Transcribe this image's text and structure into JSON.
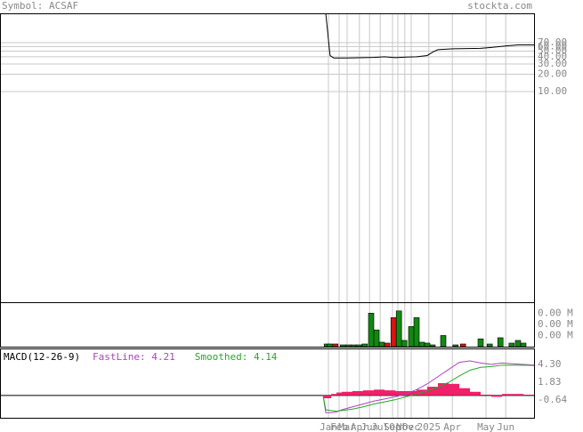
{
  "header": {
    "symbol": "Symbol: ACSAF",
    "site": "stockta.com"
  },
  "chart_data": [
    {
      "type": "line",
      "log_scale": true,
      "grid": true,
      "xlim": [
        0,
        100
      ],
      "ylim": [
        0.0023,
        225
      ],
      "yticks": [
        {
          "value": 70,
          "label": "70.00"
        },
        {
          "value": 60,
          "label": "60.00"
        },
        {
          "value": 50,
          "label": "50.00"
        },
        {
          "value": 40,
          "label": "40.00"
        },
        {
          "value": 30,
          "label": "30.00"
        },
        {
          "value": 20,
          "label": "20.00"
        },
        {
          "value": 10,
          "label": "10.00"
        }
      ],
      "x": [
        61,
        61.8,
        62.5,
        65,
        68,
        70,
        72,
        74,
        76,
        78,
        80,
        81,
        82,
        85,
        90,
        92,
        95,
        97,
        100
      ],
      "series": [
        {
          "color": "#000000",
          "values": [
            225,
            42,
            38,
            38,
            38.5,
            39,
            40,
            38.5,
            39.5,
            40,
            42,
            48,
            53,
            55,
            56,
            58,
            62,
            64,
            64
          ]
        }
      ]
    },
    {
      "type": "bar",
      "xlim": [
        0,
        100
      ],
      "ylim": [
        0,
        0.0039
      ],
      "yticks": [
        {
          "value": 0.003,
          "label": "0.00 M"
        },
        {
          "value": 0.002,
          "label": "0.00 M"
        },
        {
          "value": 0.001,
          "label": "0.00 M"
        }
      ],
      "x": [
        61.2,
        61.8,
        62.8,
        64.2,
        65.2,
        66.2,
        67.2,
        68.3,
        69.5,
        70.5,
        71.5,
        72.5,
        73.7,
        74.7,
        75.7,
        77,
        78,
        79,
        80,
        81,
        83,
        85.3,
        86.7,
        90,
        91.7,
        93.7,
        95.8,
        97,
        98
      ],
      "values": [
        0.00024,
        0.00024,
        0.00024,
        0.00016,
        0.00016,
        0.00016,
        0.00016,
        0.00024,
        0.003,
        0.0015,
        0.0004,
        0.00032,
        0.0026,
        0.0032,
        0.00056,
        0.0018,
        0.0026,
        0.0004,
        0.00032,
        0.00016,
        0.001,
        0.00016,
        0.00024,
        0.0007,
        0.00024,
        0.0008,
        0.00032,
        0.00056,
        0.00032
      ],
      "colors": [
        "#118811",
        "#118811",
        "#dd1111",
        "#118811",
        "#118811",
        "#118811",
        "#118811",
        "#118811",
        "#118811",
        "#118811",
        "#118811",
        "#dd1111",
        "#dd1111",
        "#118811",
        "#118811",
        "#118811",
        "#118811",
        "#118811",
        "#118811",
        "#118811",
        "#118811",
        "#118811",
        "#dd1111",
        "#118811",
        "#118811",
        "#118811",
        "#118811",
        "#118811",
        "#118811"
      ]
    },
    {
      "type": "macd",
      "title": "MACD(12-26-9)",
      "xlim": [
        0,
        100
      ],
      "ylim": [
        -3.11,
        6.4
      ],
      "yticks": [
        {
          "value": 4.3,
          "label": "4.30"
        },
        {
          "value": 1.83,
          "label": "1.83"
        },
        {
          "value": -0.64,
          "label": "-0.64"
        }
      ],
      "xticks": [
        {
          "value": 61.5,
          "label": "Jan"
        },
        {
          "value": 63.5,
          "label": "Feb"
        },
        {
          "value": 65,
          "label": "Mar"
        },
        {
          "value": 67.3,
          "label": "Apr"
        },
        {
          "value": 69.2,
          "label": "Jun"
        },
        {
          "value": 71.2,
          "label": "Jul"
        },
        {
          "value": 73.5,
          "label": "Sep"
        },
        {
          "value": 74.5,
          "label": "Oct"
        },
        {
          "value": 75.8,
          "label": "Nov"
        },
        {
          "value": 77,
          "label": "Dec"
        },
        {
          "value": 80.3,
          "label": "2025"
        },
        {
          "value": 84.7,
          "label": "Apr"
        },
        {
          "value": 91,
          "label": "May"
        },
        {
          "value": 94.7,
          "label": "Jun"
        }
      ],
      "x": [
        60.5,
        61,
        62,
        63,
        64,
        66,
        68,
        70,
        72,
        74,
        76,
        78,
        80,
        82,
        84,
        86,
        88,
        90,
        92,
        94,
        96,
        98,
        100
      ],
      "histogram": {
        "color": "#f0206a",
        "values": [
          -0.4,
          -0.4,
          0.2,
          0.4,
          0.5,
          0.6,
          0.7,
          0.8,
          0.7,
          0.6,
          0.6,
          0.8,
          1.2,
          1.7,
          1.6,
          1.0,
          0.5,
          0.1,
          -0.2,
          0.2,
          0.2,
          0.1,
          0.0
        ]
      },
      "series": [
        {
          "name": "FastLine: 4.21",
          "color": "#b040c0",
          "values": [
            0,
            -2.4,
            -2.4,
            -2.3,
            -2.0,
            -1.6,
            -1.2,
            -0.8,
            -0.5,
            -0.2,
            0.2,
            0.8,
            1.6,
            2.6,
            3.6,
            4.6,
            4.8,
            4.5,
            4.3,
            4.5,
            4.4,
            4.3,
            4.21
          ]
        },
        {
          "name": "Smoothed: 4.14",
          "color": "#22aa22",
          "values": [
            0,
            -2.0,
            -2.1,
            -2.2,
            -2.1,
            -1.9,
            -1.6,
            -1.2,
            -0.9,
            -0.6,
            -0.2,
            0.2,
            0.6,
            1.1,
            1.8,
            2.7,
            3.5,
            3.9,
            4.0,
            4.2,
            4.2,
            4.2,
            4.14
          ]
        }
      ]
    }
  ]
}
